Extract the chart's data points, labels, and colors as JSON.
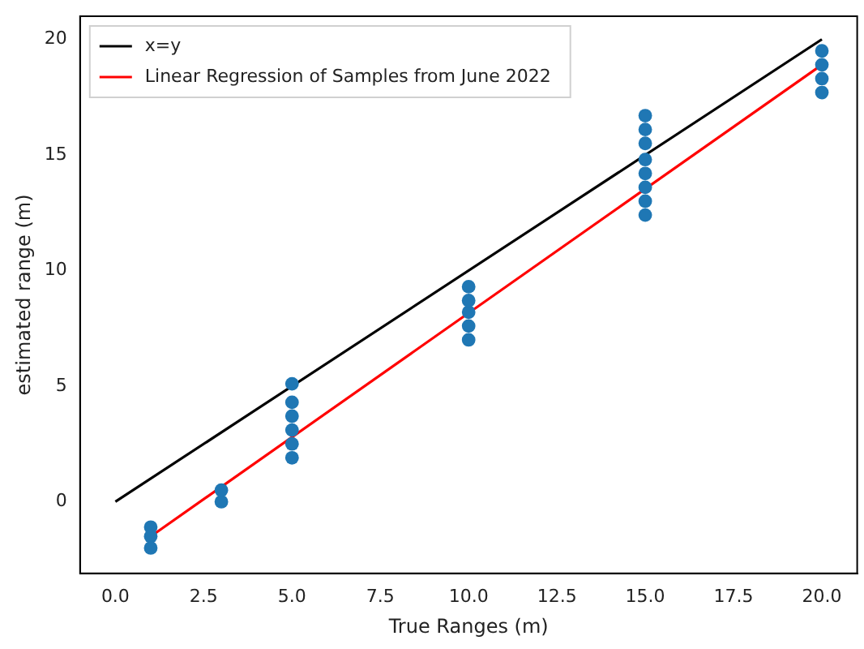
{
  "chart_data": {
    "type": "scatter",
    "xlabel": "True Ranges (m)",
    "ylabel": "estimated range (m)",
    "xlim": [
      -1,
      21
    ],
    "ylim": [
      -3.1,
      21.0
    ],
    "xticks": [
      {
        "value": 0,
        "label": "0.0"
      },
      {
        "value": 2.5,
        "label": "2.5"
      },
      {
        "value": 5,
        "label": "5.0"
      },
      {
        "value": 7.5,
        "label": "7.5"
      },
      {
        "value": 10,
        "label": "10.0"
      },
      {
        "value": 12.5,
        "label": "12.5"
      },
      {
        "value": 15,
        "label": "15.0"
      },
      {
        "value": 17.5,
        "label": "17.5"
      },
      {
        "value": 20,
        "label": "20.0"
      }
    ],
    "yticks": [
      0,
      5,
      10,
      15,
      20
    ],
    "grid": false,
    "legend": "top left",
    "marker": "circle",
    "series": [
      {
        "type": "line",
        "name": "x=y",
        "color": "#000000",
        "marker": "none",
        "x": [
          0,
          20
        ],
        "values": [
          0,
          20
        ]
      },
      {
        "type": "line",
        "name": "Linear Regression of Samples from June 2022",
        "color": "#ff0000",
        "marker": "none",
        "x": [
          1,
          20
        ],
        "values": [
          -1.5,
          18.9
        ]
      },
      {
        "color": "#1f77b4",
        "x": [
          1,
          1,
          1,
          3,
          3,
          5,
          5,
          5,
          5,
          5,
          5,
          10,
          10,
          10,
          10,
          10,
          15,
          15,
          15,
          15,
          15,
          15,
          15,
          15,
          20,
          20,
          20,
          20
        ],
        "values": [
          -1.1,
          -1.5,
          -2.0,
          0.0,
          0.5,
          1.9,
          2.5,
          3.1,
          3.7,
          4.3,
          5.1,
          7.0,
          7.6,
          8.2,
          8.7,
          9.3,
          12.4,
          13.0,
          13.6,
          14.2,
          14.8,
          15.5,
          16.1,
          16.7,
          17.7,
          18.3,
          18.9,
          19.5
        ]
      }
    ]
  }
}
